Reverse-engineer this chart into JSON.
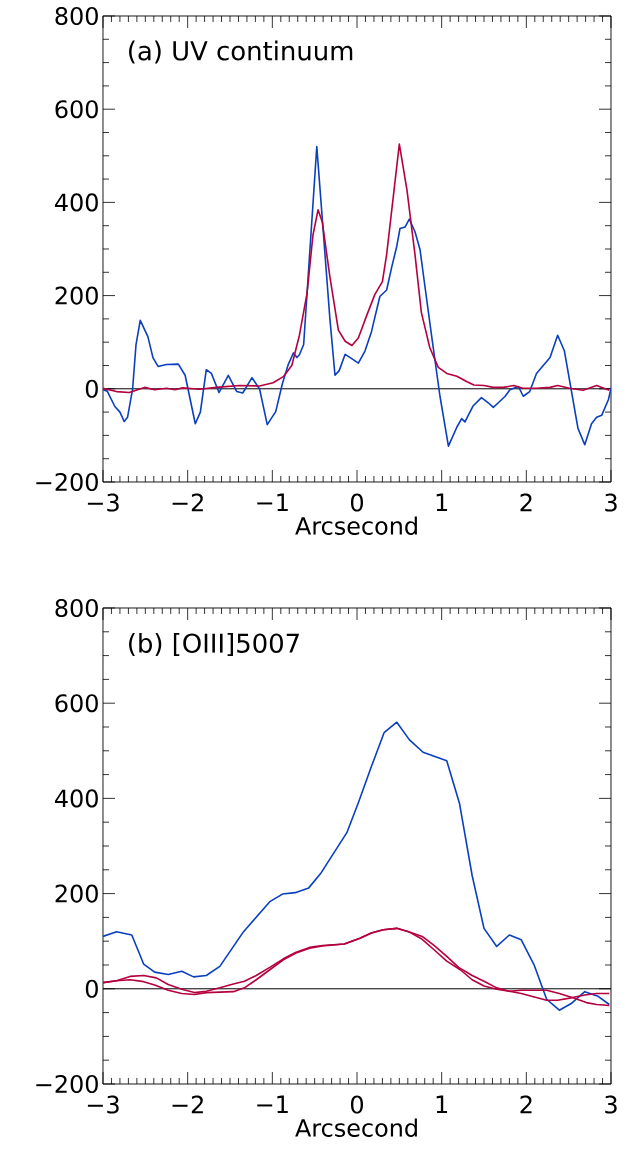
{
  "chart_data": [
    {
      "type": "line",
      "annotations": [
        "(a) UV continuum"
      ],
      "xlabel": "Arcsecond",
      "xlim": [
        -3,
        3
      ],
      "ylim": [
        -200,
        800
      ],
      "xticks": [
        {
          "value": -3,
          "label": "−3"
        },
        {
          "value": -2,
          "label": "−2"
        },
        {
          "value": -1,
          "label": "−1"
        },
        0,
        1,
        2,
        3
      ],
      "yticks": [
        {
          "value": -200,
          "label": "−200"
        },
        0,
        200,
        400,
        600,
        800
      ],
      "ref_lines": [
        {
          "axis": "y",
          "value": 0,
          "color": "#000000"
        }
      ],
      "series": [
        {
          "color": "#0a3fbf",
          "x": [
            -3.0,
            -2.95,
            -2.86,
            -2.8,
            -2.75,
            -2.71,
            -2.65,
            -2.61,
            -2.56,
            -2.47,
            -2.41,
            -2.35,
            -2.25,
            -2.11,
            -2.03,
            -1.91,
            -1.85,
            -1.78,
            -1.72,
            -1.63,
            -1.52,
            -1.42,
            -1.35,
            -1.24,
            -1.15,
            -1.06,
            -0.96,
            -0.88,
            -0.81,
            -0.75,
            -0.71,
            -0.68,
            -0.63,
            -0.475,
            -0.32,
            -0.26,
            -0.21,
            -0.14,
            -0.08,
            0.016,
            0.094,
            0.17,
            0.27,
            0.35,
            0.41,
            0.47,
            0.508,
            0.567,
            0.618,
            0.685,
            0.744,
            0.803,
            0.88,
            0.98,
            1.08,
            1.18,
            1.236,
            1.275,
            1.37,
            1.47,
            1.55,
            1.61,
            1.669,
            1.75,
            1.806,
            1.905,
            1.964,
            2.04,
            2.12,
            2.28,
            2.37,
            2.45,
            2.53,
            2.61,
            2.69,
            2.77,
            2.83,
            2.89,
            2.97,
            3.0
          ],
          "values": [
            -2,
            -5,
            -38,
            -50,
            -70,
            -61,
            0,
            95,
            147,
            112,
            67,
            48,
            52,
            53,
            29,
            -75,
            -50,
            41,
            33,
            -8,
            29,
            -6,
            -9,
            24,
            -1,
            -77,
            -49,
            12,
            53,
            77,
            67,
            73,
            95,
            520,
            150,
            29,
            39,
            74,
            67,
            55,
            81,
            122,
            198,
            212,
            261,
            306,
            344,
            347,
            364,
            337,
            299,
            219,
            115,
            -16,
            -123,
            -82,
            -64,
            -71,
            -37,
            -19,
            -30,
            -40,
            -30,
            -16,
            -2,
            5,
            -16,
            -6,
            33,
            67,
            115,
            81,
            -2,
            -85,
            -120,
            -75,
            -61,
            -57,
            -23,
            1
          ]
        },
        {
          "color": "#b5003f",
          "x": [
            -3.0,
            -2.84,
            -2.69,
            -2.51,
            -2.39,
            -2.25,
            -2.15,
            -2.06,
            -1.86,
            -1.66,
            -1.39,
            -1.15,
            -0.99,
            -0.87,
            -0.77,
            -0.68,
            -0.59,
            -0.52,
            -0.46,
            -0.41,
            -0.32,
            -0.22,
            -0.14,
            -0.06,
            0.016,
            0.114,
            0.21,
            0.3,
            0.35,
            0.5,
            0.59,
            0.685,
            0.76,
            0.86,
            0.96,
            1.06,
            1.18,
            1.3,
            1.38,
            1.5,
            1.61,
            1.73,
            1.85,
            1.96,
            2.12,
            2.28,
            2.37,
            2.51,
            2.67,
            2.83,
            2.98
          ],
          "values": [
            1,
            -6,
            -8,
            3,
            -2,
            1,
            -2,
            2,
            -1,
            3,
            7,
            6,
            13,
            26,
            50,
            115,
            205,
            330,
            384,
            358,
            240,
            126,
            102,
            93,
            109,
            157,
            202,
            230,
            288,
            525,
            427,
            288,
            164,
            88,
            46,
            33,
            27,
            15,
            8,
            7,
            3,
            3,
            7,
            1,
            1,
            3,
            7,
            1,
            -3,
            7,
            -3
          ]
        }
      ]
    },
    {
      "type": "line",
      "annotations": [
        "(b) [OIII]5007"
      ],
      "xlabel": "Arcsecond",
      "xlim": [
        -3,
        3
      ],
      "ylim": [
        -200,
        800
      ],
      "xticks": [
        {
          "value": -3,
          "label": "−3"
        },
        {
          "value": -2,
          "label": "−2"
        },
        {
          "value": -1,
          "label": "−1"
        },
        0,
        1,
        2,
        3
      ],
      "yticks": [
        {
          "value": -200,
          "label": "−200"
        },
        0,
        200,
        400,
        600,
        800
      ],
      "ref_lines": [
        {
          "axis": "y",
          "value": 0,
          "color": "#000000"
        }
      ],
      "series": [
        {
          "color": "#0a3fbf",
          "x": [
            -3.0,
            -2.84,
            -2.66,
            -2.52,
            -2.39,
            -2.23,
            -2.07,
            -1.93,
            -1.78,
            -1.62,
            -1.34,
            -1.03,
            -0.88,
            -0.73,
            -0.57,
            -0.43,
            -0.12,
            0.016,
            0.17,
            0.32,
            0.47,
            0.62,
            0.78,
            0.92,
            1.06,
            1.21,
            1.36,
            1.5,
            1.65,
            1.8,
            1.94,
            2.09,
            2.24,
            2.39,
            2.53,
            2.69,
            2.84,
            2.98
          ],
          "values": [
            110,
            120,
            113,
            52,
            35,
            30,
            37,
            25,
            28,
            47,
            120,
            183,
            199,
            202,
            212,
            242,
            328,
            391,
            467,
            538,
            560,
            523,
            497,
            488,
            479,
            390,
            238,
            127,
            89,
            113,
            103,
            51,
            -22,
            -45,
            -31,
            -6,
            -15,
            -33
          ]
        },
        {
          "color": "#b5003f",
          "x": [
            -3.0,
            -2.84,
            -2.68,
            -2.52,
            -2.37,
            -2.23,
            -2.07,
            -1.92,
            -1.78,
            -1.62,
            -1.46,
            -1.33,
            -1.19,
            -1.03,
            -0.87,
            -0.72,
            -0.56,
            -0.41,
            -0.15,
            0.035,
            0.17,
            0.31,
            0.47,
            0.61,
            0.77,
            0.91,
            1.06,
            1.2,
            1.36,
            1.5,
            1.65,
            1.8,
            1.94,
            2.09,
            2.24,
            2.39,
            2.55,
            2.71,
            2.83,
            2.98
          ],
          "values": [
            13,
            17,
            26,
            28,
            23,
            9,
            -1,
            -8,
            -5,
            2,
            10,
            16,
            28,
            45,
            63,
            77,
            87,
            91,
            94,
            106,
            117,
            124,
            127,
            120,
            110,
            91,
            68,
            45,
            28,
            16,
            2,
            -5,
            -3,
            -3,
            -3,
            -10,
            -19,
            -29,
            -33,
            -35
          ]
        },
        {
          "color": "#b5003f",
          "x": [
            -3.0,
            -2.84,
            -2.68,
            -2.52,
            -2.39,
            -2.23,
            -2.07,
            -1.92,
            -1.78,
            -1.46,
            -1.33,
            -1.19,
            -1.03,
            -0.87,
            -0.72,
            -0.56,
            -0.41,
            -0.15,
            0.035,
            0.17,
            0.31,
            0.47,
            0.61,
            0.77,
            0.91,
            1.06,
            1.22,
            1.36,
            1.5,
            1.65,
            1.8,
            1.94,
            2.09,
            2.24,
            2.37,
            2.53,
            2.69,
            2.83,
            2.98
          ],
          "values": [
            13,
            17,
            19,
            15,
            8,
            -3,
            -10,
            -12,
            -8,
            -6,
            2,
            19,
            40,
            61,
            75,
            85,
            90,
            94,
            106,
            117,
            124,
            127,
            120,
            104,
            82,
            58,
            40,
            19,
            6,
            -1,
            -5,
            -10,
            -17,
            -24,
            -24,
            -19,
            -13,
            -10,
            -10
          ]
        }
      ]
    }
  ]
}
